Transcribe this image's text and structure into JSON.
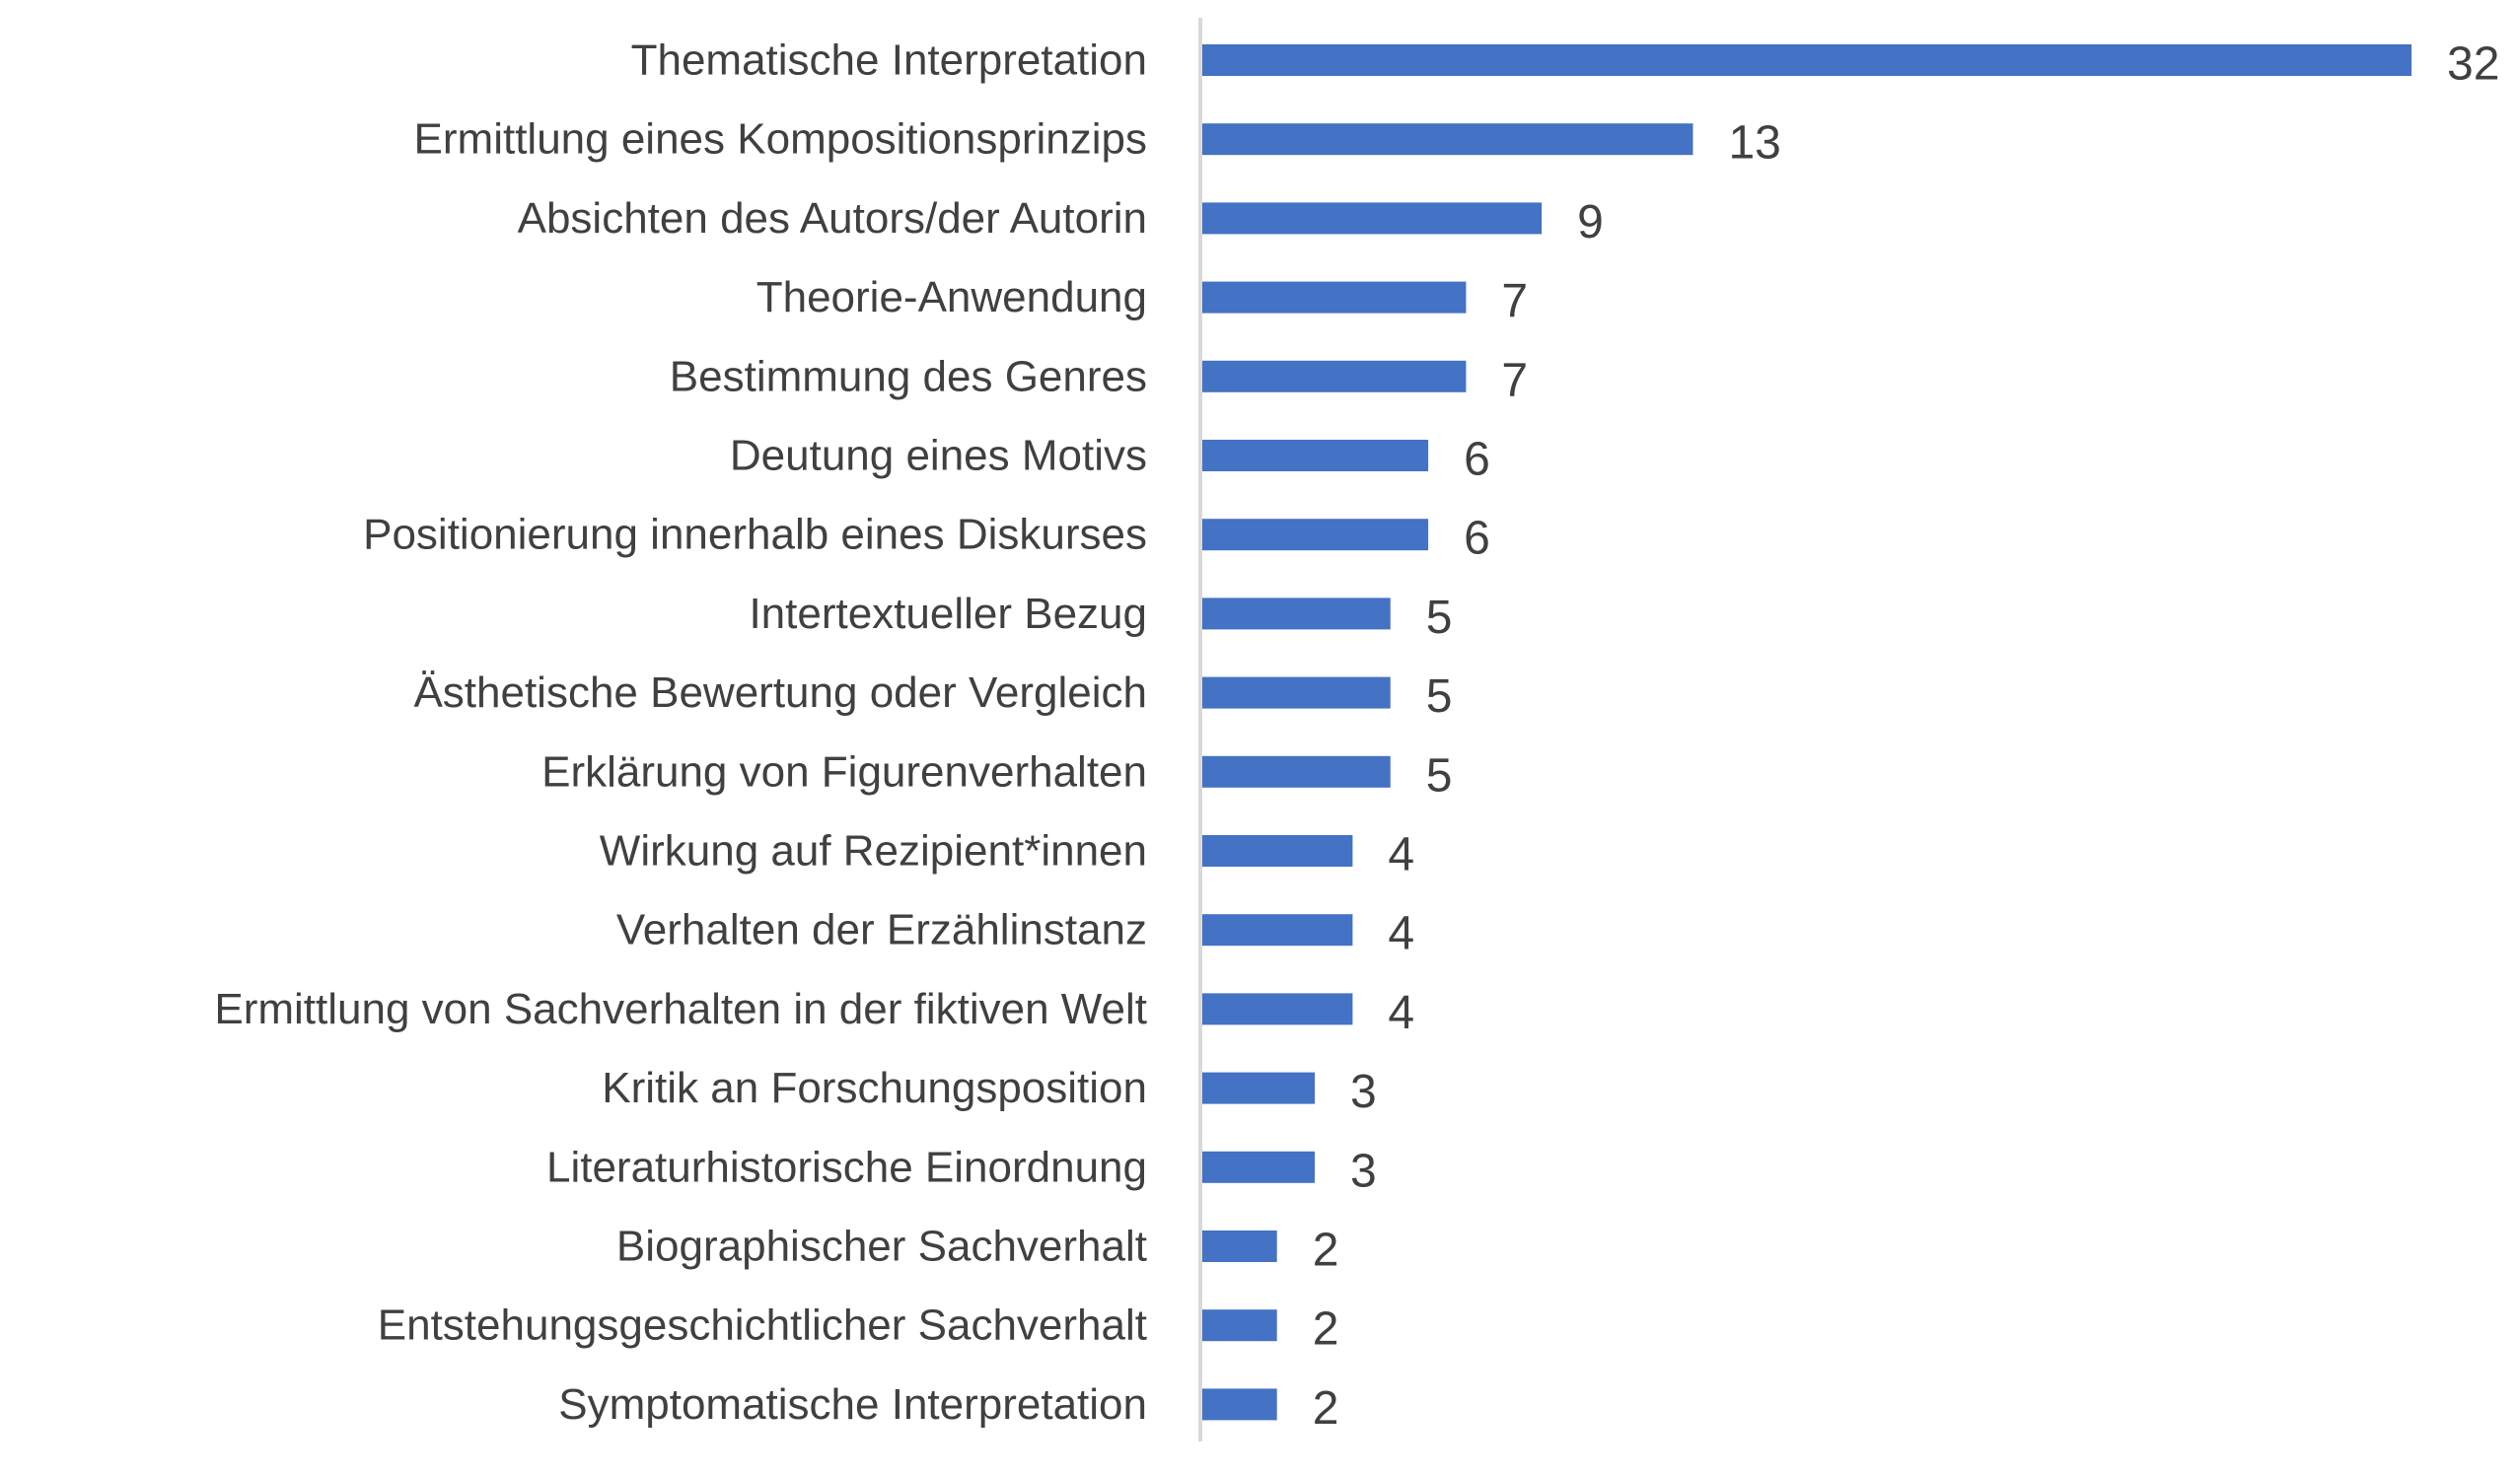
{
  "chart_data": {
    "type": "bar",
    "orientation": "horizontal",
    "categories": [
      "Thematische Interpretation",
      "Ermittlung eines Kompositionsprinzips",
      "Absichten des Autors/der Autorin",
      "Theorie-Anwendung",
      "Bestimmung des Genres",
      "Deutung eines Motivs",
      "Positionierung innerhalb eines Diskurses",
      "Intertextueller Bezug",
      "Ästhetische Bewertung oder Vergleich",
      "Erklärung von Figurenverhalten",
      "Wirkung auf Rezipient*innen",
      "Verhalten der Erzählinstanz",
      "Ermittlung von Sachverhalten in der fiktiven Welt",
      "Kritik an Forschungsposition",
      "Literaturhistorische Einordnung",
      "Biographischer Sachverhalt",
      "Entstehungsgeschichtlicher Sachverhalt",
      "Symptomatische Interpretation"
    ],
    "values": [
      32,
      13,
      9,
      7,
      7,
      6,
      6,
      5,
      5,
      5,
      4,
      4,
      4,
      3,
      3,
      2,
      2,
      2
    ],
    "title": "",
    "xlabel": "",
    "ylabel": "",
    "xlim": [
      0,
      32
    ],
    "grid": false,
    "legend": "none",
    "data_labels": true,
    "colors": {
      "bar": "#4472C4",
      "axis": "#D9D9D9",
      "text": "#404040"
    }
  }
}
